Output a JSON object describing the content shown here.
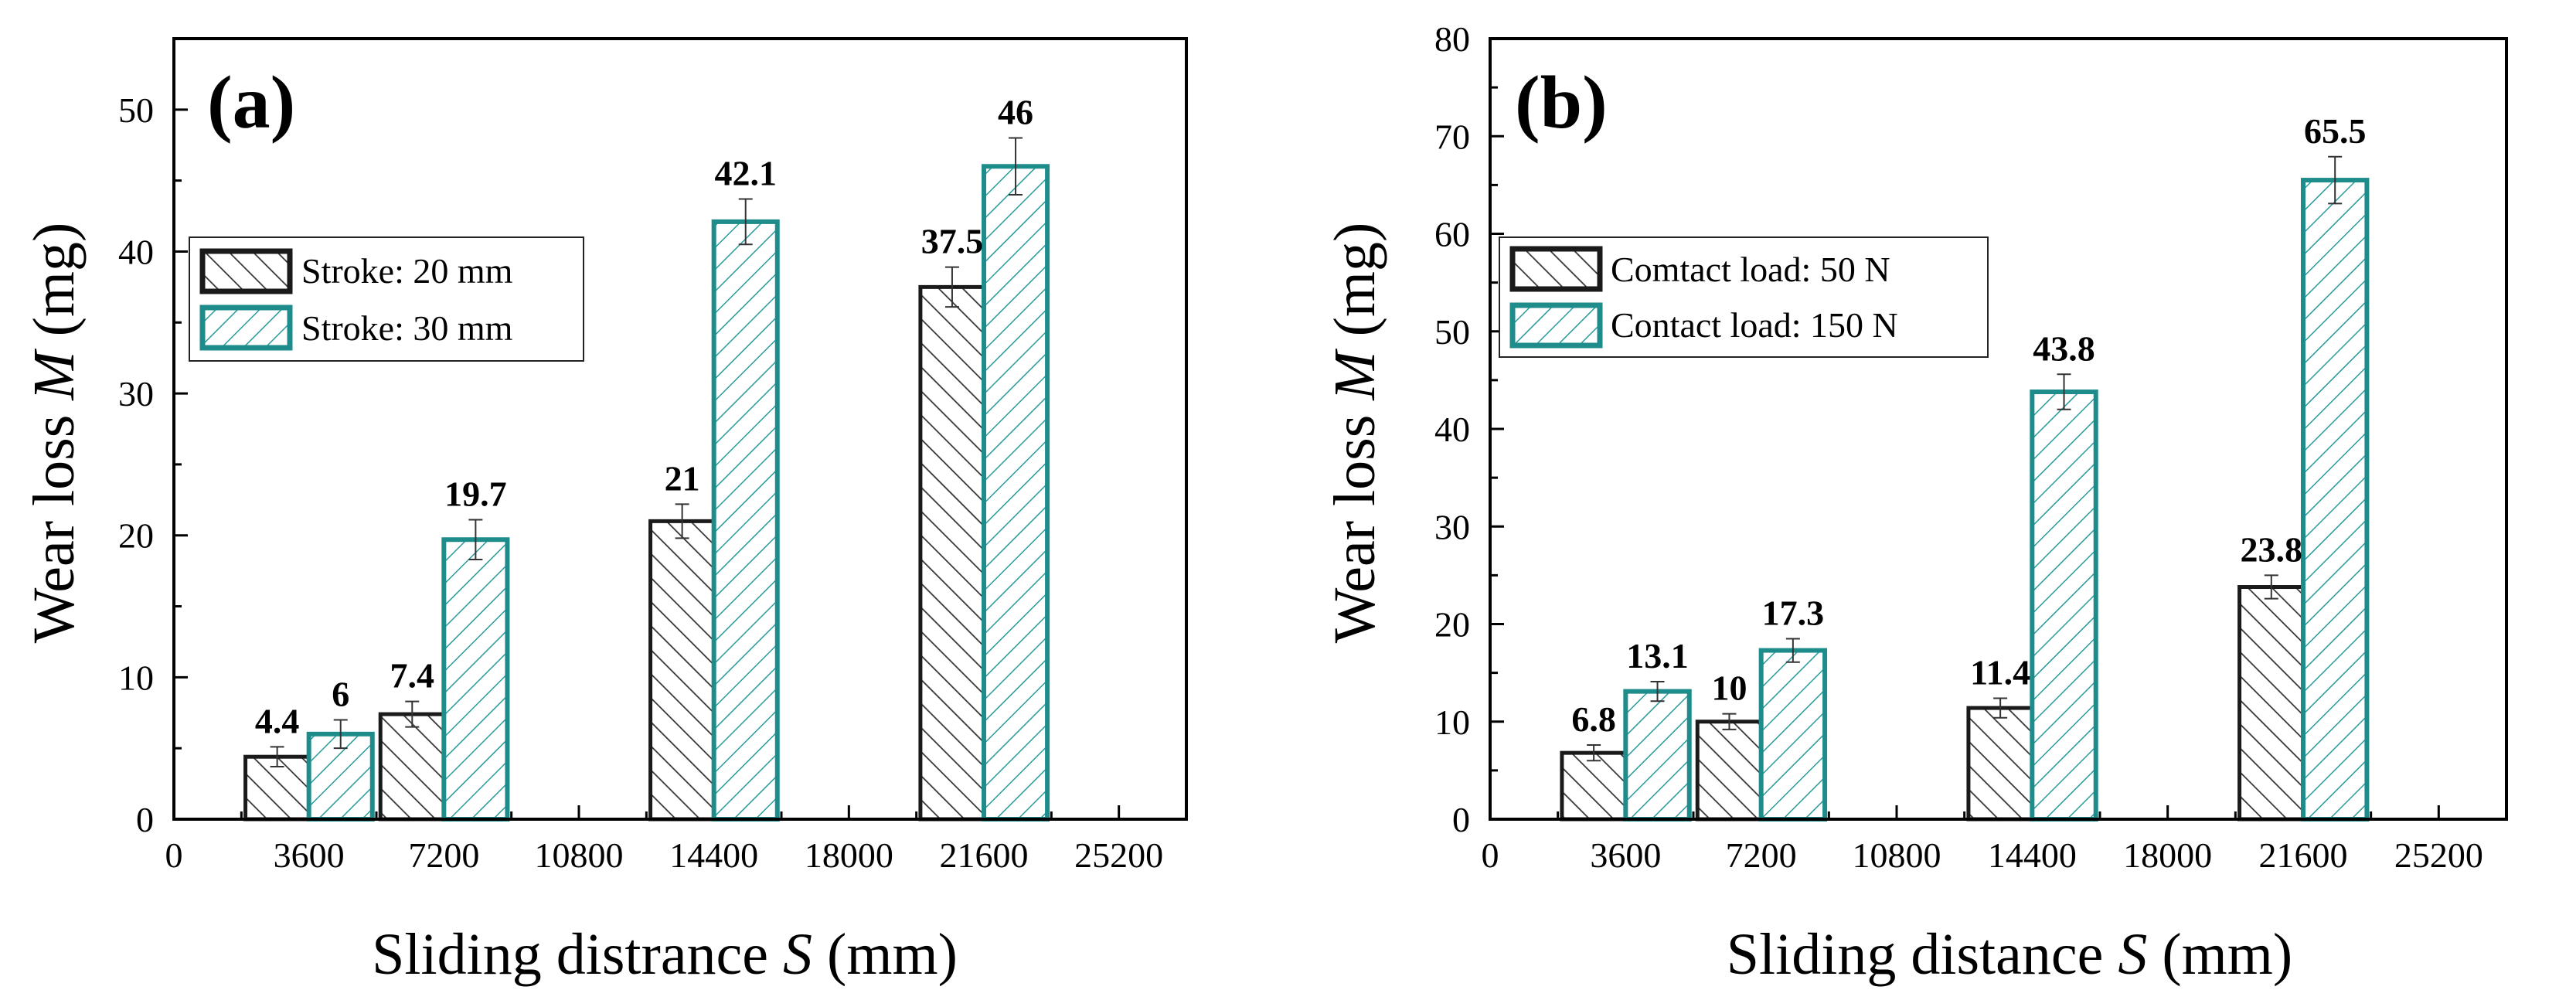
{
  "colors": {
    "black_series": "#1a1a1a",
    "teal_series": "#1f8c8c",
    "hatch_black": "#333333",
    "hatch_teal": "#2a9a9a",
    "axis": "#000000"
  },
  "chart_data": [
    {
      "type": "bar",
      "panel_label": "(a)",
      "xlabel_pre": "Sliding distrance ",
      "xlabel_var": "S",
      "xlabel_post": " (mm)",
      "ylabel_pre": "Wear loss ",
      "ylabel_var": "M",
      "ylabel_post": " (mg)",
      "xlim": [
        0,
        27000
      ],
      "ylim": [
        0,
        55
      ],
      "xticks": [
        0,
        3600,
        7200,
        10800,
        14400,
        18000,
        21600,
        25200
      ],
      "xtick_labels": [
        "0",
        "3600",
        "7200",
        "10800",
        "14400",
        "18000",
        "21600",
        "25200"
      ],
      "yticks": [
        0,
        10,
        20,
        30,
        40,
        50
      ],
      "ytick_labels": [
        "0",
        "10",
        "20",
        "30",
        "40",
        "50"
      ],
      "legend_position": "upper-left",
      "series": [
        {
          "name": "Stroke: 20 mm",
          "style": "black",
          "x": [
            3600,
            7200,
            14400,
            21600
          ],
          "values": [
            4.4,
            7.4,
            21,
            37.5
          ],
          "labels": [
            "4.4",
            "7.4",
            "21",
            "37.5"
          ],
          "errors": [
            0.7,
            0.9,
            1.2,
            1.4
          ]
        },
        {
          "name": "Stroke: 30 mm",
          "style": "teal",
          "x": [
            3600,
            7200,
            14400,
            21600
          ],
          "values": [
            6,
            19.7,
            42.1,
            46
          ],
          "labels": [
            "6",
            "19.7",
            "42.1",
            "46"
          ],
          "errors": [
            1.0,
            1.4,
            1.6,
            2.0
          ]
        }
      ]
    },
    {
      "type": "bar",
      "panel_label": "(b)",
      "xlabel_pre": "Sliding distance ",
      "xlabel_var": "S",
      "xlabel_post": " (mm)",
      "ylabel_pre": "Wear loss ",
      "ylabel_var": "M",
      "ylabel_post": " (mg)",
      "xlim": [
        0,
        27000
      ],
      "ylim": [
        0,
        80
      ],
      "xticks": [
        0,
        3600,
        7200,
        10800,
        14400,
        18000,
        21600,
        25200
      ],
      "xtick_labels": [
        "0",
        "3600",
        "7200",
        "10800",
        "14400",
        "18000",
        "21600",
        "25200"
      ],
      "yticks": [
        0,
        10,
        20,
        30,
        40,
        50,
        60,
        70,
        80
      ],
      "ytick_labels": [
        "0",
        "10",
        "20",
        "30",
        "40",
        "50",
        "60",
        "70",
        "80"
      ],
      "legend_position": "upper-left",
      "series": [
        {
          "name": "Comtact load: 50 N",
          "style": "black",
          "x": [
            3600,
            7200,
            14400,
            21600
          ],
          "values": [
            6.8,
            10,
            11.4,
            23.8
          ],
          "labels": [
            "6.8",
            "10",
            "11.4",
            "23.8"
          ],
          "errors": [
            0.8,
            0.8,
            1.0,
            1.2
          ]
        },
        {
          "name": "Contact load: 150 N",
          "style": "teal",
          "x": [
            3600,
            7200,
            14400,
            21600
          ],
          "values": [
            13.1,
            17.3,
            43.8,
            65.5
          ],
          "labels": [
            "13.1",
            "17.3",
            "43.8",
            "65.5"
          ],
          "errors": [
            1.0,
            1.2,
            1.8,
            2.4
          ]
        }
      ]
    }
  ]
}
